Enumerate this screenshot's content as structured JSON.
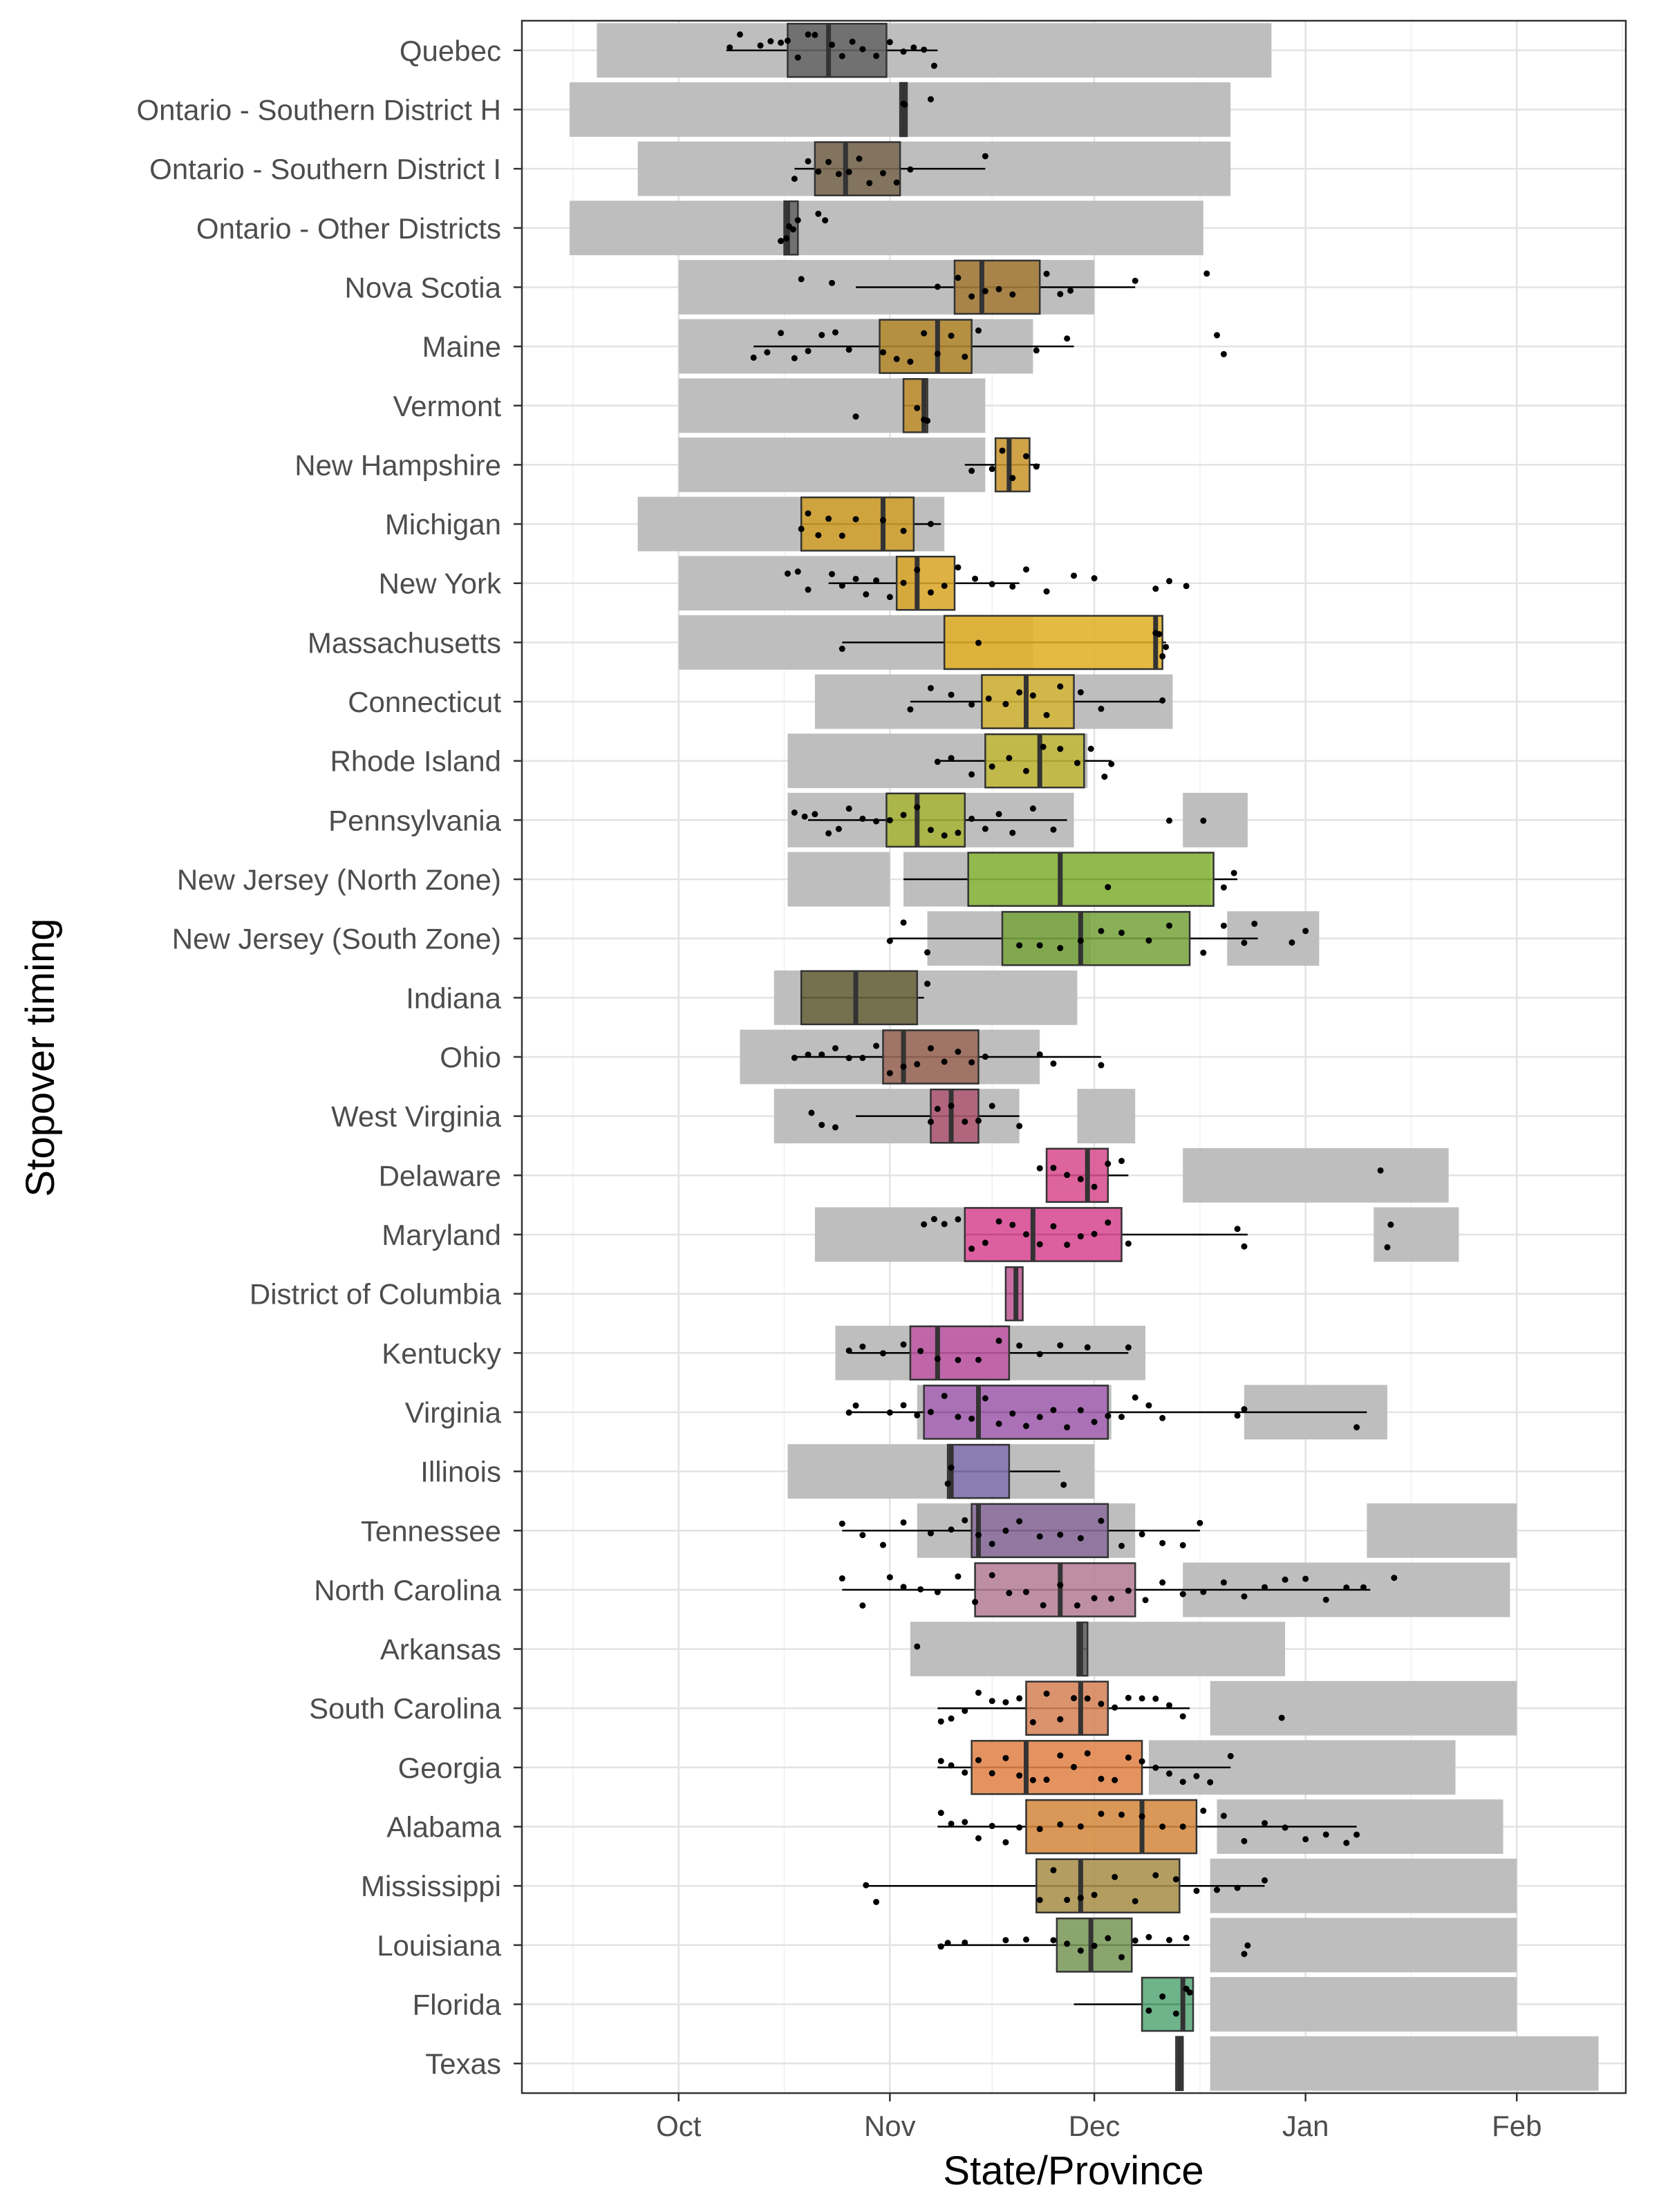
{
  "chart_data": {
    "type": "boxplot",
    "xlabel": "State/Province",
    "ylabel": "Stopover timing",
    "x_ticks": [
      "Oct",
      "Nov",
      "Dec",
      "Jan",
      "Feb"
    ],
    "x_tick_days": [
      0,
      31,
      61,
      92,
      123
    ],
    "x_range_days": [
      -23,
      139
    ],
    "x_range_dates": [
      "Sep 8",
      "Feb 17"
    ],
    "grid": true,
    "legend": "none",
    "background_ranges_color": "#bebebe",
    "categories": [
      {
        "name": "Quebec",
        "color": "#666666",
        "ranges": [
          [
            -12,
            87
          ]
        ],
        "box": [
          16,
          22,
          30.5
        ],
        "whiskers": [
          7,
          38
        ],
        "points": [
          7.5,
          9,
          12,
          13.5,
          15,
          16,
          17.5,
          19,
          20,
          22.5,
          24,
          25.5,
          27,
          29,
          31,
          33,
          34.5,
          36,
          37.5
        ]
      },
      {
        "name": "Ontario - Southern District H",
        "color": "#666666",
        "ranges": [
          [
            -16,
            81
          ]
        ],
        "box": [
          32.5,
          33,
          33.5
        ],
        "whiskers": [
          32.5,
          33.5
        ],
        "points": [
          33,
          33.2,
          37
        ]
      },
      {
        "name": "Ontario - Southern District I",
        "color": "#7a6a52",
        "ranges": [
          [
            -6,
            81
          ]
        ],
        "box": [
          20,
          24.5,
          32.5
        ],
        "whiskers": [
          17,
          45
        ],
        "points": [
          17,
          19,
          20.5,
          22,
          23.5,
          25,
          26.5,
          28,
          30,
          32,
          34,
          45
        ]
      },
      {
        "name": "Ontario - Other Districts",
        "color": "#666666",
        "ranges": [
          [
            -16,
            77
          ]
        ],
        "box": [
          15.5,
          16,
          17.5
        ],
        "whiskers": [
          15.5,
          17.5
        ],
        "points": [
          15,
          15.8,
          16.2,
          16.8,
          17.5,
          20.5,
          21.5
        ]
      },
      {
        "name": "Nova Scotia",
        "color": "#a57c3a",
        "ranges": [
          [
            0,
            61
          ]
        ],
        "box": [
          40.5,
          44.5,
          53
        ],
        "whiskers": [
          26,
          67
        ],
        "points": [
          18,
          22.5,
          38,
          41,
          43,
          45,
          47,
          49,
          54,
          56,
          57.5,
          67,
          77.5
        ]
      },
      {
        "name": "Maine",
        "color": "#b48a30",
        "ranges": [
          [
            0,
            52
          ]
        ],
        "box": [
          29.5,
          38,
          43
        ],
        "whiskers": [
          11,
          58
        ],
        "points": [
          11,
          13,
          15,
          17,
          19,
          21,
          23,
          25,
          30,
          32,
          34,
          36,
          38,
          40,
          42,
          44,
          52.5,
          57,
          79,
          80
        ]
      },
      {
        "name": "Vermont",
        "color": "#c08f30",
        "ranges": [
          [
            0,
            45
          ]
        ],
        "box": [
          33,
          36,
          36.5
        ],
        "whiskers": [
          33,
          36.5
        ],
        "points": [
          26,
          35,
          36,
          36.5
        ]
      },
      {
        "name": "New Hampshire",
        "color": "#c99630",
        "ranges": [
          [
            0,
            45
          ]
        ],
        "box": [
          46.5,
          48.5,
          51.5
        ],
        "whiskers": [
          42,
          53
        ],
        "points": [
          43,
          46,
          47.5,
          49,
          51,
          52.5
        ]
      },
      {
        "name": "Michigan",
        "color": "#d1a02e",
        "ranges": [
          [
            -6,
            39
          ]
        ],
        "box": [
          18,
          30,
          34.5
        ],
        "whiskers": [
          18,
          38.5
        ],
        "points": [
          18,
          19,
          20.5,
          22,
          24,
          26,
          30,
          33,
          37
        ]
      },
      {
        "name": "New York",
        "color": "#d9a62b",
        "ranges": [
          [
            0,
            35
          ]
        ],
        "box": [
          32,
          35,
          40.5
        ],
        "whiskers": [
          22,
          50
        ],
        "points": [
          16,
          17.5,
          19,
          22.5,
          24,
          26,
          27.5,
          29,
          31,
          33,
          35,
          37,
          39,
          41,
          43.5,
          46,
          49,
          51,
          54,
          58,
          61,
          70,
          72,
          74.5
        ]
      },
      {
        "name": "Massachusetts",
        "color": "#e0b02a",
        "ranges": [
          [
            0,
            52
          ]
        ],
        "box": [
          39,
          70,
          71
        ],
        "whiskers": [
          24,
          71.5
        ],
        "points": [
          24,
          44,
          70,
          70.5,
          71,
          71.5
        ]
      },
      {
        "name": "Connecticut",
        "color": "#d4b53a",
        "ranges": [
          [
            20,
            72.5
          ]
        ],
        "box": [
          44.5,
          51,
          58
        ],
        "whiskers": [
          34,
          71
        ],
        "points": [
          34,
          37,
          40,
          43,
          45.5,
          48,
          50,
          52,
          54,
          56,
          59,
          62,
          71
        ]
      },
      {
        "name": "Rhode Island",
        "color": "#c2b83a",
        "ranges": [
          [
            16,
            60
          ]
        ],
        "box": [
          45,
          53,
          59.5
        ],
        "whiskers": [
          38,
          63.5
        ],
        "points": [
          38,
          40,
          43,
          46,
          48.5,
          51,
          53.5,
          56,
          58.5,
          60.5,
          62.5,
          63.5
        ]
      },
      {
        "name": "Pennsylvania",
        "color": "#a8b43a",
        "ranges": [
          [
            16,
            58
          ],
          [
            74,
            83.5
          ]
        ],
        "box": [
          30.5,
          35,
          42
        ],
        "whiskers": [
          19,
          57
        ],
        "points": [
          17,
          18.5,
          20,
          22,
          23.5,
          25,
          27,
          29,
          31,
          33,
          35,
          37,
          39,
          41,
          43,
          45,
          47,
          49,
          52,
          55,
          72,
          77
        ]
      },
      {
        "name": "New Jersey (North Zone)",
        "color": "#8cb83e",
        "ranges": [
          [
            16,
            31
          ],
          [
            33,
            78
          ]
        ],
        "box": [
          42.5,
          56,
          78.5
        ],
        "whiskers": [
          33,
          82
        ],
        "points": [
          63,
          80,
          81.5
        ]
      },
      {
        "name": "New Jersey (South Zone)",
        "color": "#7aa540",
        "ranges": [
          [
            36.5,
            60.5
          ],
          [
            80.5,
            94
          ]
        ],
        "box": [
          47.5,
          59,
          75
        ],
        "whiskers": [
          31,
          85
        ],
        "points": [
          31,
          33,
          36.5,
          50,
          53,
          56,
          59,
          62,
          65,
          69,
          72,
          77,
          80,
          83,
          84.5,
          90,
          92
        ]
      },
      {
        "name": "Indiana",
        "color": "#6b6640",
        "ranges": [
          [
            14,
            58.5
          ]
        ],
        "box": [
          18,
          26,
          35
        ],
        "whiskers": [
          18,
          36
        ],
        "points": [
          36.5
        ]
      },
      {
        "name": "Ohio",
        "color": "#9c6a5a",
        "ranges": [
          [
            9,
            53
          ]
        ],
        "box": [
          30,
          33,
          44
        ],
        "whiskers": [
          17,
          62
        ],
        "points": [
          17,
          19,
          21,
          23,
          25,
          27,
          29,
          31,
          33,
          35,
          37,
          39,
          41,
          43,
          45,
          53,
          55,
          62
        ]
      },
      {
        "name": "West Virginia",
        "color": "#b05a75",
        "ranges": [
          [
            14,
            50
          ],
          [
            58.5,
            67
          ]
        ],
        "box": [
          37,
          40,
          44
        ],
        "whiskers": [
          26,
          50
        ],
        "points": [
          19.5,
          21,
          23,
          37,
          38,
          40,
          42,
          44,
          46,
          50
        ]
      },
      {
        "name": "Delaware",
        "color": "#d84f8f",
        "ranges": [
          [
            74,
            113
          ]
        ],
        "box": [
          54,
          60,
          63
        ],
        "whiskers": [
          54,
          66
        ],
        "points": [
          53,
          55,
          57,
          59,
          61,
          63,
          65,
          103
        ]
      },
      {
        "name": "Maryland",
        "color": "#e0529c",
        "ranges": [
          [
            20,
            65
          ],
          [
            102,
            114.5
          ]
        ],
        "box": [
          42,
          52,
          65
        ],
        "whiskers": [
          42,
          83.5
        ],
        "points": [
          36,
          37.5,
          39,
          41,
          43,
          45,
          47,
          49,
          51,
          53,
          55,
          57,
          59,
          61,
          63,
          66,
          82,
          83,
          104,
          104.5
        ]
      },
      {
        "name": "District of Columbia",
        "color": "#c05a95",
        "ranges": [],
        "box": [
          48,
          49.5,
          50.5
        ],
        "whiskers": [
          48,
          50.5
        ],
        "points": []
      },
      {
        "name": "Kentucky",
        "color": "#c05aa5",
        "ranges": [
          [
            23,
            68.5
          ]
        ],
        "box": [
          34,
          38,
          48.5
        ],
        "whiskers": [
          25,
          66
        ],
        "points": [
          25,
          27,
          30,
          33,
          35.5,
          38,
          41,
          44,
          47,
          50,
          53,
          56,
          60,
          66
        ]
      },
      {
        "name": "Virginia",
        "color": "#a866b5",
        "ranges": [
          [
            35,
            63.5
          ],
          [
            83,
            104
          ]
        ],
        "box": [
          36,
          44,
          63
        ],
        "whiskers": [
          25,
          101
        ],
        "points": [
          25,
          26,
          31,
          33,
          35,
          37,
          39,
          41,
          43,
          45,
          47,
          49,
          51,
          53,
          55,
          57,
          59,
          61,
          63,
          65,
          67,
          69,
          71,
          82,
          83,
          99.5
        ]
      },
      {
        "name": "Illinois",
        "color": "#8473b2",
        "ranges": [
          [
            16,
            61
          ]
        ],
        "box": [
          39.5,
          40,
          48.5
        ],
        "whiskers": [
          39.5,
          56
        ],
        "points": [
          39.5,
          40,
          56.5
        ]
      },
      {
        "name": "Tennessee",
        "color": "#8c6e9c",
        "ranges": [
          [
            35,
            67
          ],
          [
            101,
            123
          ]
        ],
        "box": [
          43,
          44,
          63
        ],
        "whiskers": [
          24,
          76.5
        ],
        "points": [
          24,
          27,
          30,
          33,
          37,
          40,
          42,
          44,
          46,
          48,
          50,
          53,
          56,
          59,
          62,
          65,
          68,
          71,
          74,
          76.5
        ]
      },
      {
        "name": "North Carolina",
        "color": "#b58095",
        "ranges": [
          [
            74,
            122
          ]
        ],
        "box": [
          43.5,
          56,
          67
        ],
        "whiskers": [
          24,
          101.5
        ],
        "points": [
          24,
          27,
          31,
          33,
          35.5,
          38,
          41,
          43.5,
          46,
          48.5,
          51,
          53.5,
          56,
          58.5,
          61,
          63.5,
          66,
          68.5,
          71,
          74,
          77,
          80,
          83,
          86,
          89,
          92,
          95,
          98,
          100.5,
          105
        ]
      },
      {
        "name": "Arkansas",
        "color": "#666666",
        "ranges": [
          [
            34,
            89
          ]
        ],
        "box": [
          58.5,
          59,
          60
        ],
        "whiskers": [
          58.5,
          60
        ],
        "points": [
          35
        ]
      },
      {
        "name": "South Carolina",
        "color": "#d6845a",
        "ranges": [
          [
            78,
            123
          ]
        ],
        "box": [
          51,
          59,
          63
        ],
        "whiskers": [
          38,
          75
        ],
        "points": [
          38.5,
          40,
          42,
          44,
          46,
          48,
          50,
          52,
          54,
          56,
          58,
          60,
          62,
          64,
          66,
          68,
          70,
          72,
          74,
          88.5
        ]
      },
      {
        "name": "Georgia",
        "color": "#e0844a",
        "ranges": [
          [
            69,
            114
          ]
        ],
        "box": [
          43,
          51,
          68
        ],
        "whiskers": [
          38,
          81
        ],
        "points": [
          38.5,
          40,
          42,
          44,
          46,
          48,
          50,
          52,
          54,
          56,
          58,
          60,
          62,
          64,
          66,
          68,
          70,
          72,
          74,
          76,
          78,
          81
        ]
      },
      {
        "name": "Alabama",
        "color": "#d48a40",
        "ranges": [
          [
            79,
            121
          ]
        ],
        "box": [
          51,
          68,
          76
        ],
        "whiskers": [
          38,
          99.5
        ],
        "points": [
          38.5,
          40,
          42,
          44,
          46,
          48,
          50,
          53,
          56,
          59,
          62,
          65,
          68,
          71,
          74,
          77,
          80,
          83,
          86,
          89,
          92,
          95,
          98,
          99.5
        ]
      },
      {
        "name": "Mississippi",
        "color": "#a8904a",
        "ranges": [
          [
            78,
            123
          ]
        ],
        "box": [
          52.5,
          59,
          73.5
        ],
        "whiskers": [
          27.5,
          86
        ],
        "points": [
          27.5,
          29,
          53,
          55,
          57,
          59,
          61,
          64,
          67,
          70,
          73,
          76,
          79,
          82,
          86
        ]
      },
      {
        "name": "Louisiana",
        "color": "#7a9a5a",
        "ranges": [
          [
            78,
            123
          ]
        ],
        "box": [
          55.5,
          60.5,
          66.5
        ],
        "whiskers": [
          38,
          75
        ],
        "points": [
          38.5,
          39.5,
          42,
          48,
          51,
          55,
          57,
          59,
          61,
          63,
          65,
          67,
          69,
          72,
          74.5,
          83,
          83.5
        ]
      },
      {
        "name": "Florida",
        "color": "#5aa87a",
        "ranges": [
          [
            78,
            123
          ]
        ],
        "box": [
          68,
          74,
          75.5
        ],
        "whiskers": [
          58,
          75.5
        ],
        "points": [
          69,
          71,
          73,
          74.5,
          75
        ]
      },
      {
        "name": "Texas",
        "color": "#666666",
        "ranges": [
          [
            78,
            135
          ]
        ],
        "box": [
          73,
          73.5,
          74
        ],
        "whiskers": [
          73,
          74
        ],
        "points": []
      }
    ]
  }
}
